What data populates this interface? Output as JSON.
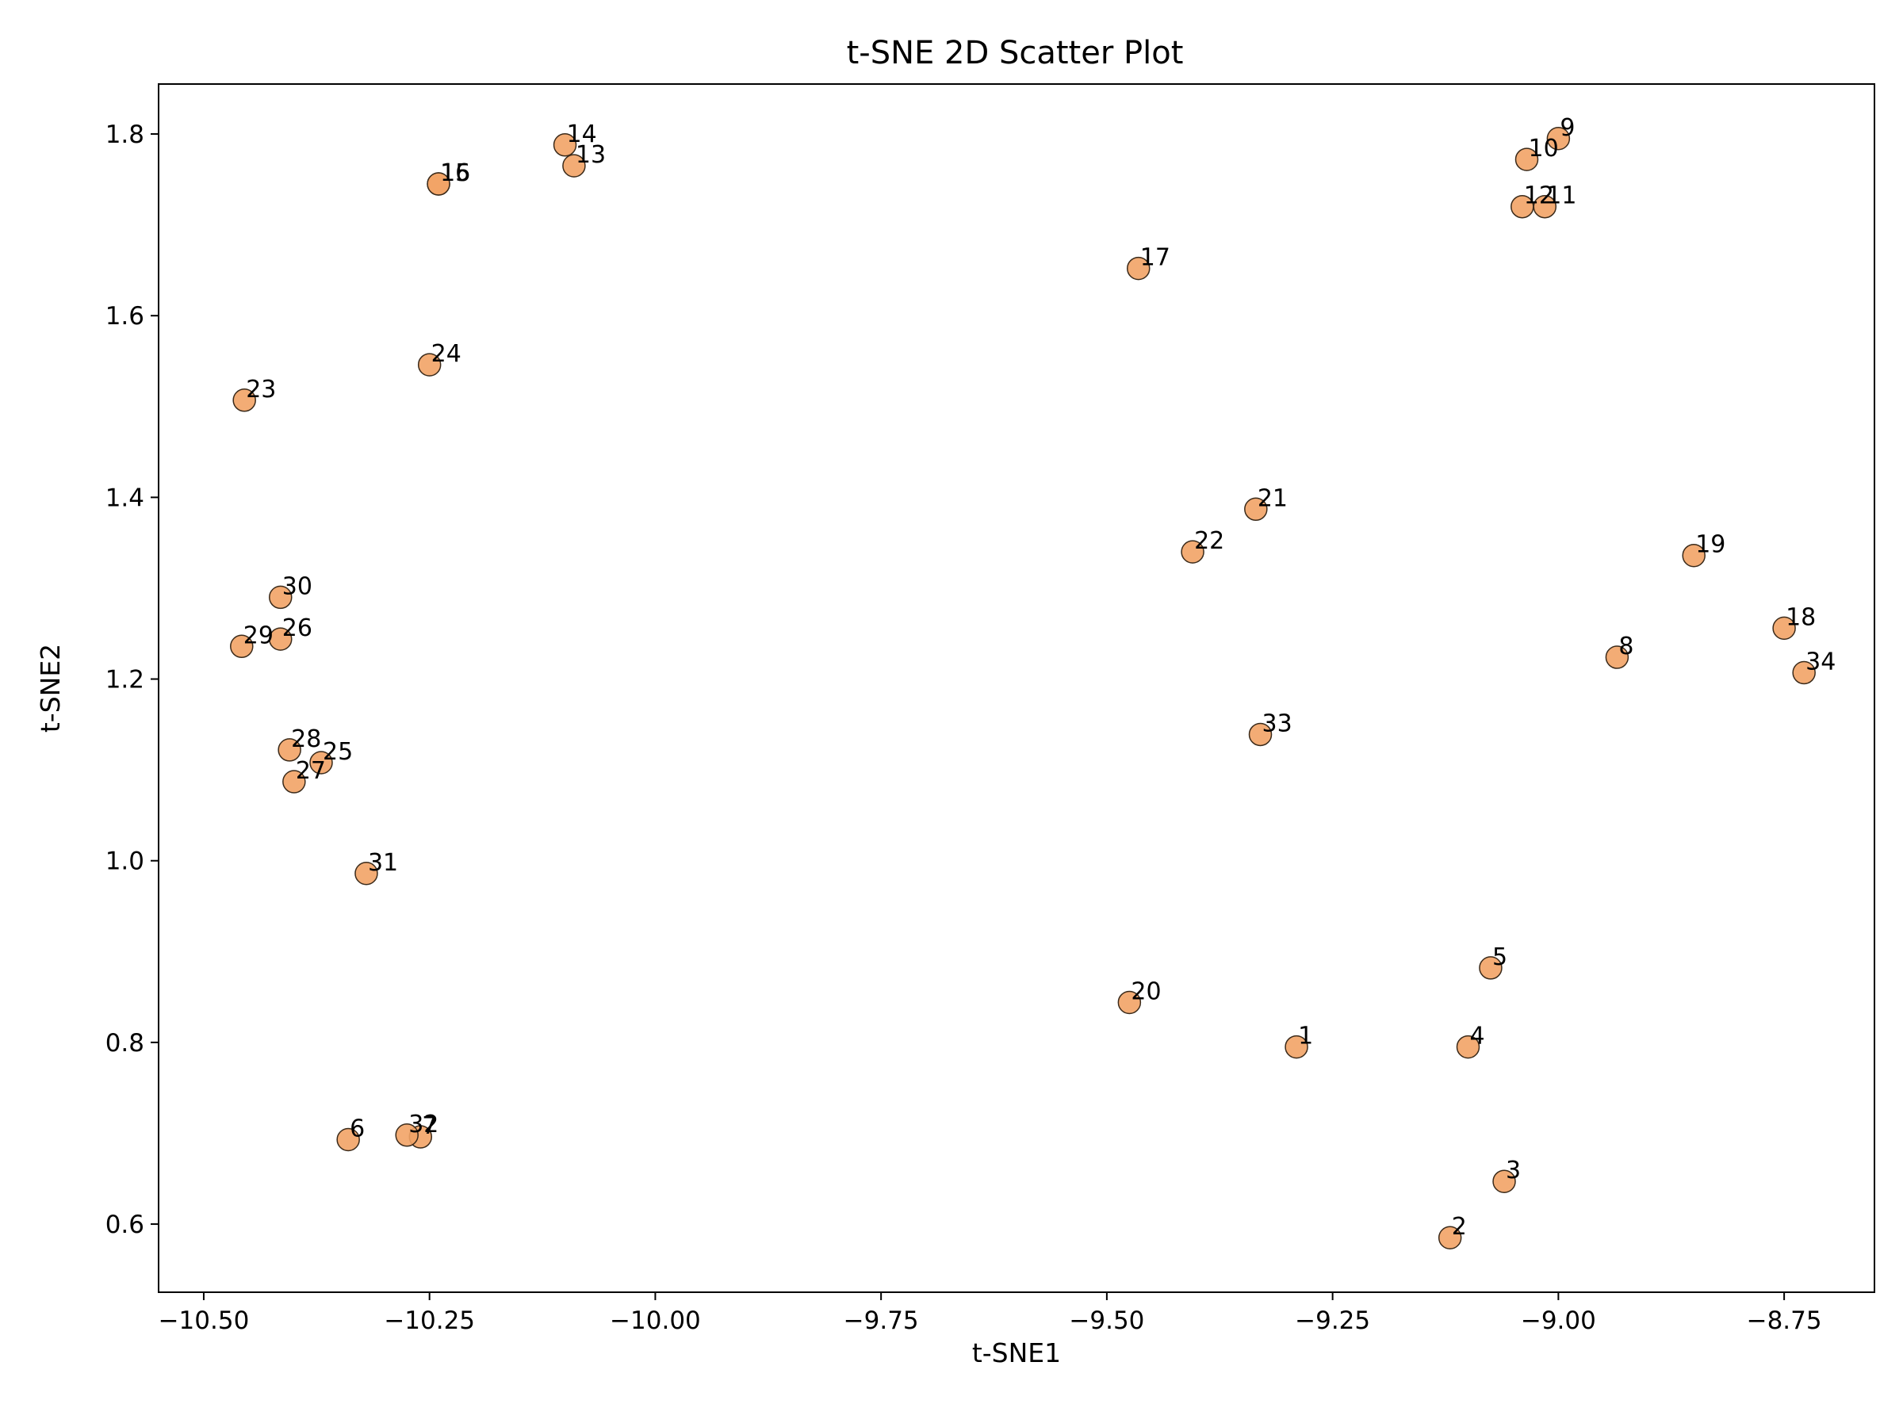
{
  "chart_data": {
    "type": "scatter",
    "title": "t-SNE 2D Scatter Plot",
    "xlabel": "t-SNE1",
    "ylabel": "t-SNE2",
    "xlim": [
      -10.55,
      -8.65
    ],
    "ylim": [
      0.525,
      1.855
    ],
    "xticks": [
      -10.5,
      -10.25,
      -10.0,
      -9.75,
      -9.5,
      -9.25,
      -9.0,
      -8.75
    ],
    "xtick_labels": [
      "−10.50",
      "−10.25",
      "−10.00",
      "−9.75",
      "−9.50",
      "−9.25",
      "−9.00",
      "−8.75"
    ],
    "yticks": [
      0.6,
      0.8,
      1.0,
      1.2,
      1.4,
      1.6,
      1.8
    ],
    "ytick_labels": [
      "0.6",
      "0.8",
      "1.0",
      "1.2",
      "1.4",
      "1.6",
      "1.8"
    ],
    "grid": false,
    "marker_color": "#f2a366",
    "marker_edge_color": "#3a2a1a",
    "points": [
      {
        "label": "1",
        "x": -9.29,
        "y": 0.795
      },
      {
        "label": "2",
        "x": -9.12,
        "y": 0.585
      },
      {
        "label": "3",
        "x": -9.06,
        "y": 0.647
      },
      {
        "label": "4",
        "x": -9.1,
        "y": 0.795
      },
      {
        "label": "5",
        "x": -9.075,
        "y": 0.882
      },
      {
        "label": "6",
        "x": -10.34,
        "y": 0.693
      },
      {
        "label": "7",
        "x": -10.26,
        "y": 0.696
      },
      {
        "label": "8",
        "x": -8.935,
        "y": 1.224
      },
      {
        "label": "9",
        "x": -9.0,
        "y": 1.795
      },
      {
        "label": "10",
        "x": -9.035,
        "y": 1.772
      },
      {
        "label": "11",
        "x": -9.015,
        "y": 1.72
      },
      {
        "label": "12",
        "x": -9.04,
        "y": 1.72
      },
      {
        "label": "13",
        "x": -10.09,
        "y": 1.765
      },
      {
        "label": "14",
        "x": -10.1,
        "y": 1.788
      },
      {
        "label": "15",
        "x": -10.24,
        "y": 1.745
      },
      {
        "label": "16",
        "x": -10.24,
        "y": 1.745
      },
      {
        "label": "17",
        "x": -9.465,
        "y": 1.652
      },
      {
        "label": "18",
        "x": -8.75,
        "y": 1.256
      },
      {
        "label": "19",
        "x": -8.85,
        "y": 1.336
      },
      {
        "label": "20",
        "x": -9.475,
        "y": 0.844
      },
      {
        "label": "21",
        "x": -9.335,
        "y": 1.387
      },
      {
        "label": "22",
        "x": -9.405,
        "y": 1.34
      },
      {
        "label": "23",
        "x": -10.455,
        "y": 1.507
      },
      {
        "label": "24",
        "x": -10.25,
        "y": 1.546
      },
      {
        "label": "25",
        "x": -10.37,
        "y": 1.108
      },
      {
        "label": "26",
        "x": -10.415,
        "y": 1.244
      },
      {
        "label": "27",
        "x": -10.4,
        "y": 1.087
      },
      {
        "label": "28",
        "x": -10.405,
        "y": 1.122
      },
      {
        "label": "29",
        "x": -10.458,
        "y": 1.236
      },
      {
        "label": "30",
        "x": -10.415,
        "y": 1.29
      },
      {
        "label": "31",
        "x": -10.32,
        "y": 0.986
      },
      {
        "label": "32",
        "x": -10.275,
        "y": 0.698
      },
      {
        "label": "33",
        "x": -9.33,
        "y": 1.139
      },
      {
        "label": "34",
        "x": -8.728,
        "y": 1.207
      }
    ]
  }
}
